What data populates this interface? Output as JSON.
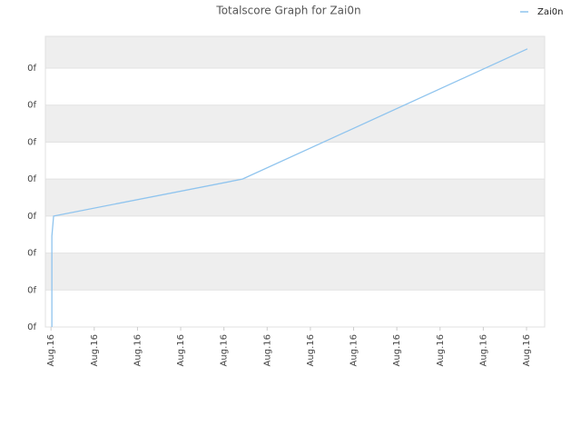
{
  "chart_data": {
    "type": "line",
    "title": "Totalscore Graph for Zai0n",
    "series": [
      {
        "name": "Zai0n",
        "color": "#8fc4ee",
        "x": [
          0.02,
          0.02,
          0.06,
          4.43,
          11.02
        ],
        "values": [
          0,
          2.46,
          3,
          4,
          7.52
        ]
      }
    ],
    "xlim": [
      -0.13,
      11.42
    ],
    "xticks": [
      {
        "value": 0,
        "label": "Aug.16"
      },
      {
        "value": 1,
        "label": "Aug.16"
      },
      {
        "value": 2,
        "label": "Aug.16"
      },
      {
        "value": 3,
        "label": "Aug.16"
      },
      {
        "value": 4,
        "label": "Aug.16"
      },
      {
        "value": 5,
        "label": "Aug.16"
      },
      {
        "value": 6,
        "label": "Aug.16"
      },
      {
        "value": 7,
        "label": "Aug.16"
      },
      {
        "value": 8,
        "label": "Aug.16"
      },
      {
        "value": 9,
        "label": "Aug.16"
      },
      {
        "value": 10,
        "label": "Aug.16"
      },
      {
        "value": 11,
        "label": "Aug.16"
      }
    ],
    "ylim": [
      0,
      7.86
    ],
    "yticks": [
      {
        "value": 0,
        "label": "0f"
      },
      {
        "value": 1,
        "label": "0f"
      },
      {
        "value": 2,
        "label": "0f"
      },
      {
        "value": 3,
        "label": "0f"
      },
      {
        "value": 4,
        "label": "0f"
      },
      {
        "value": 5,
        "label": "0f"
      },
      {
        "value": 6,
        "label": "0f"
      },
      {
        "value": 7,
        "label": "0f"
      }
    ],
    "grid": true,
    "legend": "top-right"
  }
}
